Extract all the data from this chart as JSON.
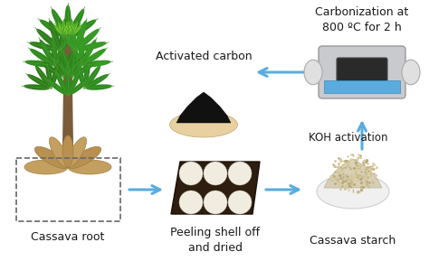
{
  "background_color": "#ffffff",
  "labels": {
    "cassava_root": "Cassava root",
    "peeling": "Peeling shell off\nand dried",
    "cassava_starch": "Cassava starch",
    "koh": "KOH activation",
    "carbonization": "Carbonization at\n800 ºC for 2 h",
    "activated_carbon": "Activated carbon"
  },
  "arrow_color": "#5aacde",
  "text_color": "#1a1a1a",
  "dashed_box_color": "#666666",
  "font_size": 8.5,
  "title_font_size": 9.5
}
